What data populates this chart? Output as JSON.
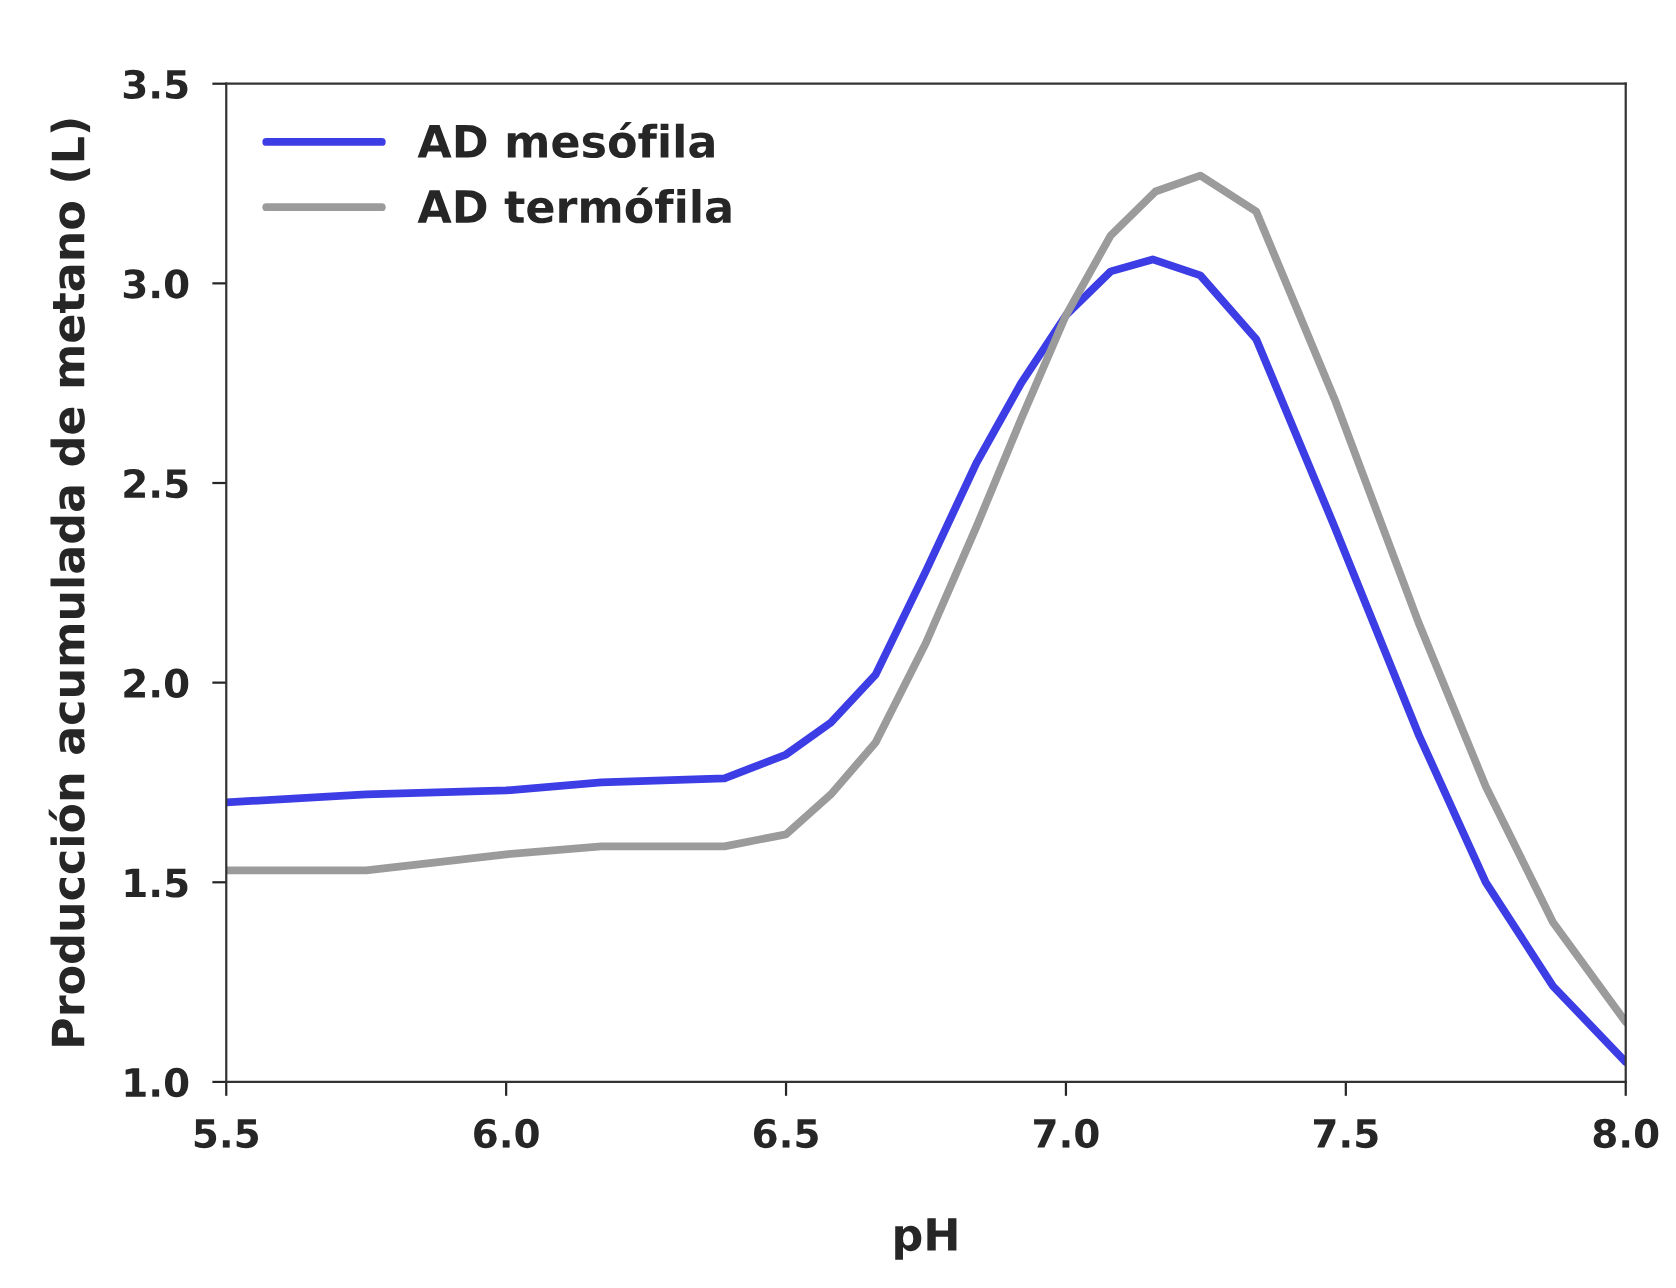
{
  "chart_data": {
    "type": "line",
    "xlabel": "pH",
    "ylabel": "Producción acumulada de metano (L)",
    "xlim": [
      5.5,
      8.0
    ],
    "xticks": [
      5.5,
      {
        "value": 6.0,
        "label": "6.0"
      },
      6.5,
      {
        "value": 7.0,
        "label": "7.0"
      },
      7.5,
      {
        "value": 8.0,
        "label": "8.0"
      }
    ],
    "ylim": [
      1.0,
      3.5
    ],
    "yticks": [
      {
        "value": 1.0,
        "label": "1.0"
      },
      1.5,
      {
        "value": 2.0,
        "label": "2.0"
      },
      2.5,
      {
        "value": 3.0,
        "label": "3.0"
      },
      3.5
    ],
    "grid": false,
    "legend": "top left",
    "marker": "none",
    "line_style": "solid",
    "series": [
      {
        "name": "AD mesófila",
        "color": "#3d3de6",
        "x": [
          5.5,
          5.75,
          6.0,
          6.17,
          6.39,
          6.5,
          6.58,
          6.66,
          6.75,
          6.84,
          6.92,
          7.0,
          7.08,
          7.155,
          7.24,
          7.34,
          7.48,
          7.63,
          7.75,
          7.87,
          8.0
        ],
        "values": [
          1.7,
          1.72,
          1.73,
          1.75,
          1.76,
          1.82,
          1.9,
          2.02,
          2.28,
          2.55,
          2.75,
          2.92,
          3.03,
          3.06,
          3.02,
          2.86,
          2.39,
          1.87,
          1.5,
          1.24,
          1.05
        ]
      },
      {
        "name": "AD termófila",
        "color": "#9b9b9b",
        "x": [
          5.5,
          5.75,
          6.0,
          6.17,
          6.39,
          6.5,
          6.58,
          6.66,
          6.75,
          6.84,
          6.92,
          7.0,
          7.08,
          7.16,
          7.24,
          7.34,
          7.48,
          7.63,
          7.75,
          7.87,
          8.0
        ],
        "values": [
          1.53,
          1.53,
          1.57,
          1.59,
          1.59,
          1.62,
          1.72,
          1.85,
          2.1,
          2.39,
          2.66,
          2.92,
          3.12,
          3.23,
          3.27,
          3.18,
          2.71,
          2.15,
          1.74,
          1.4,
          1.15
        ]
      }
    ]
  }
}
